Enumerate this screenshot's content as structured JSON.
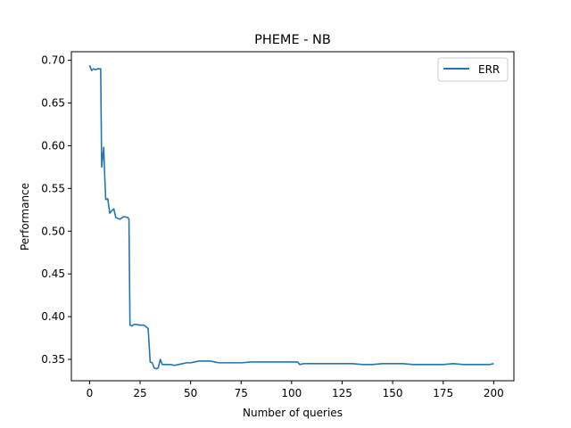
{
  "chart_data": {
    "type": "line",
    "title": "PHEME - NB",
    "xlabel": "Number of queries",
    "ylabel": "Performance",
    "xlim": [
      -9,
      210
    ],
    "ylim": [
      0.325,
      0.71
    ],
    "xticks": [
      0,
      25,
      50,
      75,
      100,
      125,
      150,
      175,
      200
    ],
    "yticks": [
      0.35,
      0.4,
      0.45,
      0.5,
      0.55,
      0.6,
      0.65,
      0.7
    ],
    "xtick_labels": [
      "0",
      "25",
      "50",
      "75",
      "100",
      "125",
      "150",
      "175",
      "200"
    ],
    "ytick_labels": [
      "0.35",
      "0.40",
      "0.45",
      "0.50",
      "0.55",
      "0.60",
      "0.65",
      "0.70"
    ],
    "grid": false,
    "legend": "top-right",
    "series": [
      {
        "name": "ERR",
        "color": "#1f77b4",
        "x": [
          0,
          1,
          2,
          3,
          4,
          5,
          5.5,
          6,
          7,
          7.5,
          8,
          9,
          10,
          11,
          12,
          13,
          15,
          17,
          19,
          19.5,
          20,
          21,
          22,
          23,
          25,
          27,
          28,
          29,
          30,
          31,
          32,
          33,
          34,
          35,
          36,
          38,
          40,
          42,
          44,
          46,
          48,
          50,
          52,
          54,
          56,
          58,
          60,
          62,
          64,
          66,
          68,
          70,
          72,
          75,
          80,
          85,
          90,
          95,
          100,
          103,
          104,
          106,
          110,
          120,
          125,
          130,
          135,
          140,
          145,
          150,
          155,
          160,
          165,
          170,
          175,
          180,
          185,
          190,
          195,
          198,
          200
        ],
        "y": [
          0.694,
          0.688,
          0.69,
          0.689,
          0.69,
          0.69,
          0.69,
          0.575,
          0.598,
          0.565,
          0.537,
          0.538,
          0.521,
          0.524,
          0.526,
          0.516,
          0.514,
          0.517,
          0.516,
          0.514,
          0.39,
          0.389,
          0.391,
          0.391,
          0.39,
          0.39,
          0.388,
          0.386,
          0.347,
          0.346,
          0.34,
          0.339,
          0.34,
          0.35,
          0.344,
          0.344,
          0.344,
          0.343,
          0.344,
          0.345,
          0.346,
          0.346,
          0.347,
          0.348,
          0.348,
          0.348,
          0.348,
          0.347,
          0.346,
          0.346,
          0.346,
          0.346,
          0.346,
          0.346,
          0.347,
          0.347,
          0.347,
          0.347,
          0.347,
          0.347,
          0.344,
          0.345,
          0.345,
          0.345,
          0.345,
          0.345,
          0.344,
          0.344,
          0.345,
          0.345,
          0.345,
          0.344,
          0.344,
          0.344,
          0.344,
          0.345,
          0.344,
          0.344,
          0.344,
          0.344,
          0.345
        ]
      }
    ]
  }
}
